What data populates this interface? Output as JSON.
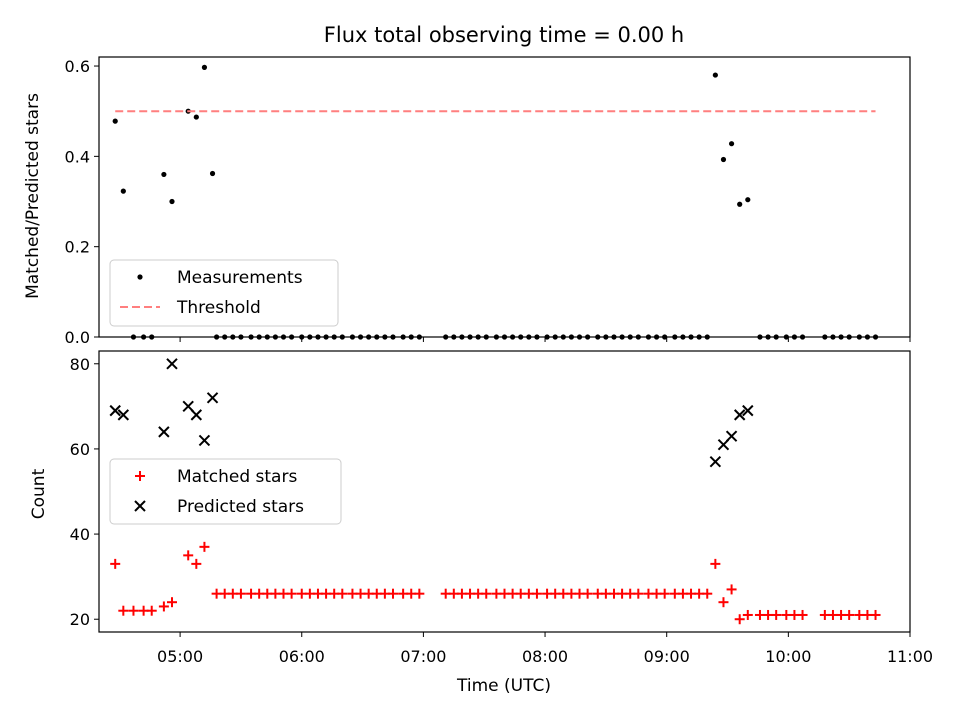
{
  "title": "Flux total observing time = 0.00 h",
  "chart_data": [
    {
      "type": "scatter",
      "ylabel": "Matched/Predicted stars",
      "xlim": [
        "04:20",
        "11:00"
      ],
      "ylim": [
        0,
        0.62
      ],
      "yticks": [
        0.0,
        0.2,
        0.4,
        0.6
      ],
      "ytick_labels": [
        "0.0",
        "0.2",
        "0.4",
        "0.6"
      ],
      "legend_position": "lower-left",
      "series": [
        {
          "name": "Measurements",
          "marker": "dot",
          "color": "#000000",
          "points": [
            [
              "04:28",
              0.478
            ],
            [
              "04:32",
              0.323
            ],
            [
              "04:37",
              0.0
            ],
            [
              "04:42",
              0.0
            ],
            [
              "04:46",
              0.0
            ],
            [
              "04:52",
              0.36
            ],
            [
              "04:56",
              0.3
            ],
            [
              "05:04",
              0.5
            ],
            [
              "05:08",
              0.487
            ],
            [
              "05:12",
              0.597
            ],
            [
              "05:16",
              0.362
            ],
            [
              "05:18",
              0.0
            ],
            [
              "05:22",
              0.0
            ],
            [
              "05:26",
              0.0
            ],
            [
              "05:30",
              0.0
            ],
            [
              "05:35",
              0.0
            ],
            [
              "05:39",
              0.0
            ],
            [
              "05:43",
              0.0
            ],
            [
              "05:47",
              0.0
            ],
            [
              "05:51",
              0.0
            ],
            [
              "05:55",
              0.0
            ],
            [
              "06:00",
              0.0
            ],
            [
              "06:04",
              0.0
            ],
            [
              "06:08",
              0.0
            ],
            [
              "06:12",
              0.0
            ],
            [
              "06:16",
              0.0
            ],
            [
              "06:20",
              0.0
            ],
            [
              "06:25",
              0.0
            ],
            [
              "06:29",
              0.0
            ],
            [
              "06:33",
              0.0
            ],
            [
              "06:37",
              0.0
            ],
            [
              "06:41",
              0.0
            ],
            [
              "06:45",
              0.0
            ],
            [
              "06:50",
              0.0
            ],
            [
              "06:54",
              0.0
            ],
            [
              "06:58",
              0.0
            ],
            [
              "07:11",
              0.0
            ],
            [
              "07:15",
              0.0
            ],
            [
              "07:19",
              0.0
            ],
            [
              "07:23",
              0.0
            ],
            [
              "07:27",
              0.0
            ],
            [
              "07:31",
              0.0
            ],
            [
              "07:36",
              0.0
            ],
            [
              "07:40",
              0.0
            ],
            [
              "07:44",
              0.0
            ],
            [
              "07:48",
              0.0
            ],
            [
              "07:52",
              0.0
            ],
            [
              "07:56",
              0.0
            ],
            [
              "08:01",
              0.0
            ],
            [
              "08:05",
              0.0
            ],
            [
              "08:09",
              0.0
            ],
            [
              "08:13",
              0.0
            ],
            [
              "08:17",
              0.0
            ],
            [
              "08:21",
              0.0
            ],
            [
              "08:26",
              0.0
            ],
            [
              "08:30",
              0.0
            ],
            [
              "08:34",
              0.0
            ],
            [
              "08:38",
              0.0
            ],
            [
              "08:42",
              0.0
            ],
            [
              "08:46",
              0.0
            ],
            [
              "08:51",
              0.0
            ],
            [
              "08:55",
              0.0
            ],
            [
              "08:59",
              0.0
            ],
            [
              "09:04",
              0.0
            ],
            [
              "09:08",
              0.0
            ],
            [
              "09:12",
              0.0
            ],
            [
              "09:16",
              0.0
            ],
            [
              "09:20",
              0.0
            ],
            [
              "09:24",
              0.58
            ],
            [
              "09:28",
              0.393
            ],
            [
              "09:32",
              0.428
            ],
            [
              "09:36",
              0.294
            ],
            [
              "09:40",
              0.304
            ],
            [
              "09:46",
              0.0
            ],
            [
              "09:50",
              0.0
            ],
            [
              "09:54",
              0.0
            ],
            [
              "09:59",
              0.0
            ],
            [
              "10:03",
              0.0
            ],
            [
              "10:07",
              0.0
            ],
            [
              "10:18",
              0.0
            ],
            [
              "10:22",
              0.0
            ],
            [
              "10:26",
              0.0
            ],
            [
              "10:30",
              0.0
            ],
            [
              "10:35",
              0.0
            ],
            [
              "10:39",
              0.0
            ],
            [
              "10:43",
              0.0
            ]
          ]
        },
        {
          "name": "Threshold",
          "style": "dashed-line",
          "color": "#ff7f7f",
          "points": [
            [
              "04:28",
              0.5
            ],
            [
              "10:43",
              0.5
            ]
          ]
        }
      ]
    },
    {
      "type": "scatter",
      "xlabel": "Time (UTC)",
      "ylabel": "Count",
      "xlim": [
        "04:20",
        "11:00"
      ],
      "ylim": [
        17,
        83
      ],
      "yticks": [
        20,
        40,
        60,
        80
      ],
      "ytick_labels": [
        "20",
        "40",
        "60",
        "80"
      ],
      "xticks": [
        "05:00",
        "06:00",
        "07:00",
        "08:00",
        "09:00",
        "10:00",
        "11:00"
      ],
      "legend_position": "center-left",
      "series": [
        {
          "name": "Matched stars",
          "marker": "plus",
          "color": "#ff0000",
          "points": [
            [
              "04:28",
              33
            ],
            [
              "04:32",
              22
            ],
            [
              "04:37",
              22
            ],
            [
              "04:42",
              22
            ],
            [
              "04:46",
              22
            ],
            [
              "04:52",
              23
            ],
            [
              "04:56",
              24
            ],
            [
              "05:04",
              35
            ],
            [
              "05:08",
              33
            ],
            [
              "05:12",
              37
            ],
            [
              "05:18",
              26
            ],
            [
              "05:22",
              26
            ],
            [
              "05:26",
              26
            ],
            [
              "05:30",
              26
            ],
            [
              "05:35",
              26
            ],
            [
              "05:39",
              26
            ],
            [
              "05:43",
              26
            ],
            [
              "05:47",
              26
            ],
            [
              "05:51",
              26
            ],
            [
              "05:55",
              26
            ],
            [
              "06:00",
              26
            ],
            [
              "06:04",
              26
            ],
            [
              "06:08",
              26
            ],
            [
              "06:12",
              26
            ],
            [
              "06:16",
              26
            ],
            [
              "06:20",
              26
            ],
            [
              "06:25",
              26
            ],
            [
              "06:29",
              26
            ],
            [
              "06:33",
              26
            ],
            [
              "06:37",
              26
            ],
            [
              "06:41",
              26
            ],
            [
              "06:45",
              26
            ],
            [
              "06:50",
              26
            ],
            [
              "06:54",
              26
            ],
            [
              "06:58",
              26
            ],
            [
              "07:11",
              26
            ],
            [
              "07:15",
              26
            ],
            [
              "07:19",
              26
            ],
            [
              "07:23",
              26
            ],
            [
              "07:27",
              26
            ],
            [
              "07:31",
              26
            ],
            [
              "07:36",
              26
            ],
            [
              "07:40",
              26
            ],
            [
              "07:44",
              26
            ],
            [
              "07:48",
              26
            ],
            [
              "07:52",
              26
            ],
            [
              "07:56",
              26
            ],
            [
              "08:01",
              26
            ],
            [
              "08:05",
              26
            ],
            [
              "08:09",
              26
            ],
            [
              "08:13",
              26
            ],
            [
              "08:17",
              26
            ],
            [
              "08:21",
              26
            ],
            [
              "08:26",
              26
            ],
            [
              "08:30",
              26
            ],
            [
              "08:34",
              26
            ],
            [
              "08:38",
              26
            ],
            [
              "08:42",
              26
            ],
            [
              "08:46",
              26
            ],
            [
              "08:51",
              26
            ],
            [
              "08:55",
              26
            ],
            [
              "08:59",
              26
            ],
            [
              "09:04",
              26
            ],
            [
              "09:08",
              26
            ],
            [
              "09:12",
              26
            ],
            [
              "09:16",
              26
            ],
            [
              "09:20",
              26
            ],
            [
              "09:24",
              33
            ],
            [
              "09:28",
              24
            ],
            [
              "09:32",
              27
            ],
            [
              "09:36",
              20
            ],
            [
              "09:40",
              21
            ],
            [
              "09:46",
              21
            ],
            [
              "09:50",
              21
            ],
            [
              "09:54",
              21
            ],
            [
              "09:59",
              21
            ],
            [
              "10:03",
              21
            ],
            [
              "10:07",
              21
            ],
            [
              "10:18",
              21
            ],
            [
              "10:22",
              21
            ],
            [
              "10:26",
              21
            ],
            [
              "10:30",
              21
            ],
            [
              "10:35",
              21
            ],
            [
              "10:39",
              21
            ],
            [
              "10:43",
              21
            ]
          ]
        },
        {
          "name": "Predicted stars",
          "marker": "x",
          "color": "#000000",
          "points": [
            [
              "04:28",
              69
            ],
            [
              "04:32",
              68
            ],
            [
              "04:52",
              64
            ],
            [
              "04:56",
              80
            ],
            [
              "05:04",
              70
            ],
            [
              "05:08",
              68
            ],
            [
              "05:12",
              62
            ],
            [
              "05:16",
              72
            ],
            [
              "09:24",
              57
            ],
            [
              "09:28",
              61
            ],
            [
              "09:32",
              63
            ],
            [
              "09:36",
              68
            ],
            [
              "09:40",
              69
            ]
          ]
        }
      ]
    }
  ]
}
